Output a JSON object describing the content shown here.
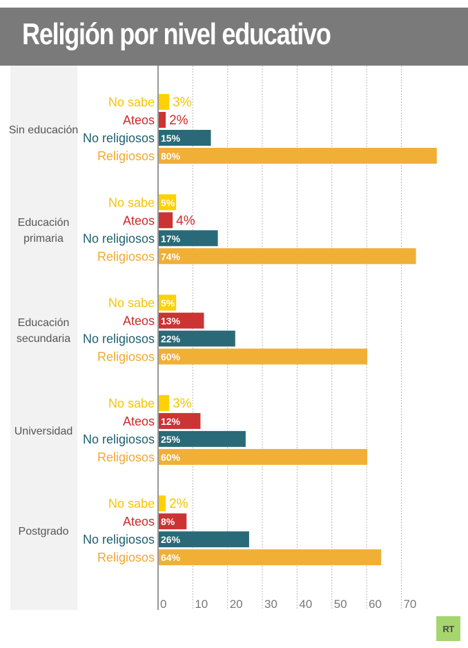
{
  "title": "Religión por nivel educativo",
  "logo_text": "RT",
  "colors": {
    "header_bg": "#7a7a7a",
    "No sabe": "#ffd100",
    "Ateos": "#cc3333",
    "No religiosos": "#2a6a78",
    "Religiosos": "#f0b036",
    "label_No sabe": "#f5c400",
    "label_Ateos": "#cc2a2a",
    "label_No religiosos": "#1e5f6e",
    "label_Religiosos": "#f0a830",
    "logo_bg": "#a6d46f"
  },
  "chart_data": {
    "type": "bar",
    "orientation": "horizontal",
    "title": "Religión por nivel educativo",
    "xlabel": "",
    "ylabel": "",
    "xlim": [
      0,
      80
    ],
    "x_ticks": [
      0,
      10,
      20,
      30,
      40,
      50,
      60,
      70
    ],
    "grid": "vertical dotted",
    "value_suffix": "%",
    "categories": [
      "Sin educación",
      "Educación primaria",
      "Educación secundaria",
      "Universidad",
      "Postgrado"
    ],
    "category_lines": [
      [
        "Sin educación"
      ],
      [
        "Educación",
        "primaria"
      ],
      [
        "Educación",
        "secundaria"
      ],
      [
        "Universidad"
      ],
      [
        "Postgrado"
      ]
    ],
    "series": [
      {
        "name": "No sabe",
        "values": [
          3,
          5,
          5,
          3,
          2
        ]
      },
      {
        "name": "Ateos",
        "values": [
          2,
          4,
          13,
          12,
          8
        ]
      },
      {
        "name": "No religiosos",
        "values": [
          15,
          17,
          22,
          25,
          26
        ]
      },
      {
        "name": "Religiosos",
        "values": [
          80,
          74,
          60,
          60,
          64
        ]
      }
    ]
  }
}
